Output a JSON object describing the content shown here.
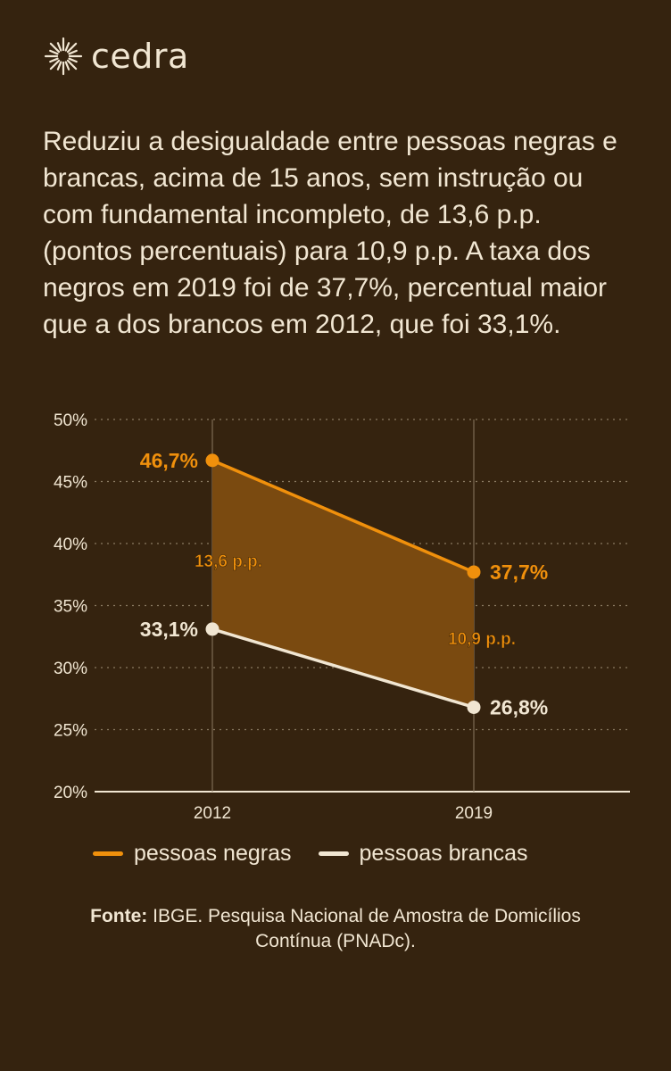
{
  "brand": {
    "name": "cedra",
    "logo_icon": "sunburst-icon",
    "color": "#f1e6d2"
  },
  "intro_text": "Reduziu a desigualdade entre pessoas negras e brancas, acima de 15 anos, sem instrução ou com fundamental incompleto, de 13,6 p.p. (pontos percentuais) para 10,9 p.p. A taxa dos negros em 2019 foi de 37,7%, percentual maior que a dos brancos em 2012, que foi 33,1%.",
  "chart_data": {
    "type": "line",
    "categories": [
      "2012",
      "2019"
    ],
    "ylim": [
      20,
      50
    ],
    "yticks": [
      "20%",
      "25%",
      "30%",
      "35%",
      "40%",
      "45%",
      "50%"
    ],
    "grid": true,
    "shaded_gap": true,
    "series": [
      {
        "name": "pessoas negras",
        "values": [
          46.7,
          37.7
        ],
        "labels": [
          "46,7%",
          "37,7%"
        ],
        "color": "#f0900c"
      },
      {
        "name": "pessoas brancas",
        "values": [
          33.1,
          26.8
        ],
        "labels": [
          "33,1%",
          "26,8%"
        ],
        "color": "#f1e6d2"
      }
    ],
    "gap_labels": [
      "13,6 p.p.",
      "10,9 p.p."
    ],
    "legend_position": "bottom"
  },
  "source": {
    "label": "Fonte:",
    "text": "IBGE. Pesquisa Nacional de Amostra de Domicílios Contínua (PNADc)."
  },
  "colors": {
    "background": "#35230f",
    "accent": "#f0900c",
    "fill": "#7a4a10",
    "text": "#f1e6d2"
  }
}
